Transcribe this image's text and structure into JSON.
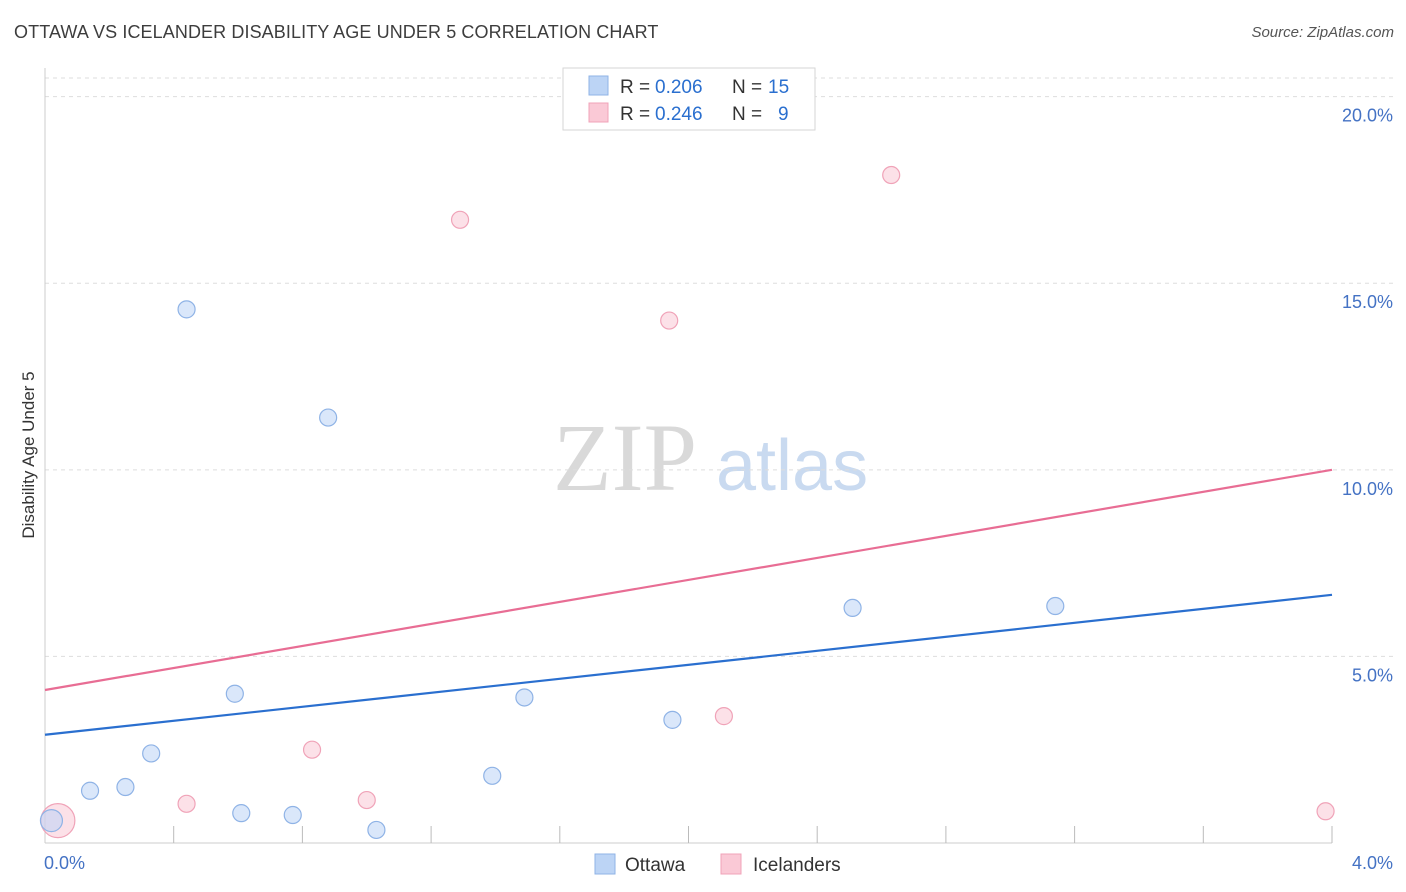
{
  "header": {
    "title": "OTTAWA VS ICELANDER DISABILITY AGE UNDER 5 CORRELATION CHART",
    "source": "Source: ZipAtlas.com"
  },
  "watermark": {
    "zip": "ZIP",
    "atlas": "atlas"
  },
  "colors": {
    "ottawa_fill": "#bcd4f5",
    "ottawa_stroke": "#8fb3e6",
    "ottawa_line": "#2a6fcf",
    "icelanders_fill": "#fac9d6",
    "icelanders_stroke": "#f0a3b8",
    "icelanders_line": "#e86d94",
    "tick": "#4472c4",
    "grid": "#dddddd"
  },
  "legend_top": {
    "rows": [
      {
        "r_label": "R = ",
        "r_value": "0.206",
        "n_label": "N = ",
        "n_value": "15"
      },
      {
        "r_label": "R = ",
        "r_value": "0.246",
        "n_label": "N = ",
        "n_value": "9"
      }
    ]
  },
  "chart_data": {
    "type": "scatter",
    "title": "OTTAWA VS ICELANDER DISABILITY AGE UNDER 5 CORRELATION CHART",
    "xlabel": "",
    "ylabel": "Disability Age Under 5",
    "xlim": [
      0,
      4.0
    ],
    "ylim": [
      0,
      20.5
    ],
    "x_tick_labels": [
      "0.0%",
      "4.0%"
    ],
    "y_ticks": [
      5,
      10,
      15,
      20
    ],
    "y_tick_labels": [
      "5.0%",
      "10.0%",
      "15.0%",
      "20.0%"
    ],
    "grid": true,
    "series": [
      {
        "name": "Ottawa",
        "points": [
          {
            "x": 0.02,
            "y": 0.6
          },
          {
            "x": 0.14,
            "y": 1.4
          },
          {
            "x": 0.25,
            "y": 1.5
          },
          {
            "x": 0.33,
            "y": 2.4
          },
          {
            "x": 0.44,
            "y": 14.3
          },
          {
            "x": 0.59,
            "y": 4.0
          },
          {
            "x": 0.61,
            "y": 0.8
          },
          {
            "x": 0.77,
            "y": 0.75
          },
          {
            "x": 0.88,
            "y": 11.4
          },
          {
            "x": 1.03,
            "y": 0.35
          },
          {
            "x": 1.39,
            "y": 1.8
          },
          {
            "x": 1.49,
            "y": 3.9
          },
          {
            "x": 1.95,
            "y": 3.3
          },
          {
            "x": 2.51,
            "y": 6.3
          },
          {
            "x": 3.14,
            "y": 6.35
          }
        ],
        "trend": {
          "x": [
            0,
            4.0
          ],
          "y": [
            2.9,
            6.65
          ]
        }
      },
      {
        "name": "Icelanders",
        "points": [
          {
            "x": 0.04,
            "y": 0.6
          },
          {
            "x": 0.44,
            "y": 1.05
          },
          {
            "x": 0.83,
            "y": 2.5
          },
          {
            "x": 1.0,
            "y": 1.15
          },
          {
            "x": 1.29,
            "y": 16.7
          },
          {
            "x": 1.94,
            "y": 14.0
          },
          {
            "x": 2.11,
            "y": 3.4
          },
          {
            "x": 2.63,
            "y": 17.9
          },
          {
            "x": 3.98,
            "y": 0.85
          }
        ],
        "trend": {
          "x": [
            0,
            4.0
          ],
          "y": [
            4.1,
            10.0
          ]
        }
      }
    ],
    "legend": [
      "Ottawa",
      "Icelanders"
    ],
    "legend_position": "bottom-center"
  }
}
